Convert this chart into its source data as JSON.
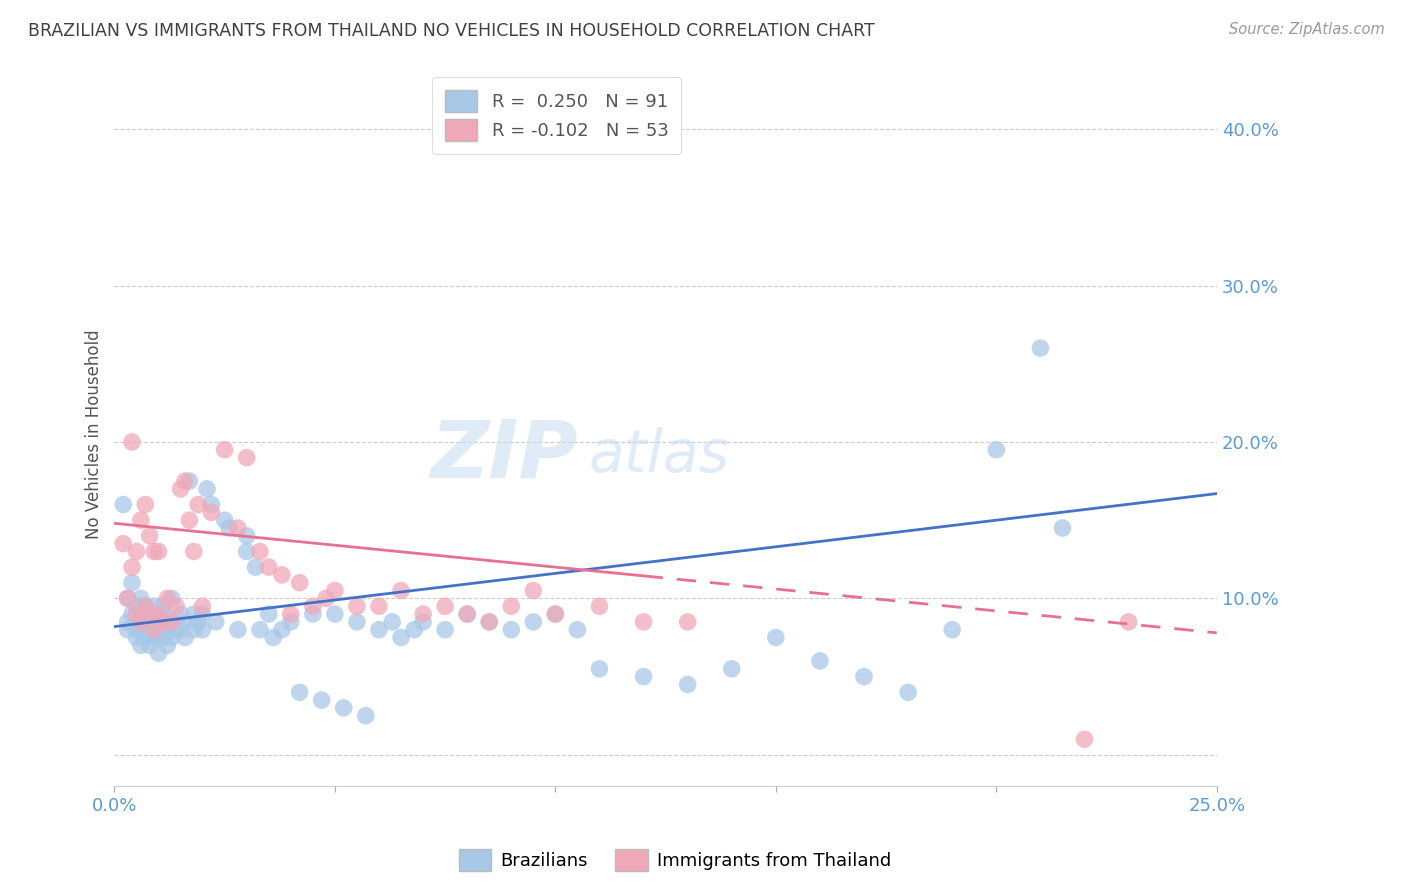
{
  "title": "BRAZILIAN VS IMMIGRANTS FROM THAILAND NO VEHICLES IN HOUSEHOLD CORRELATION CHART",
  "source": "Source: ZipAtlas.com",
  "ylabel": "No Vehicles in Household",
  "watermark_zip": "ZIP",
  "watermark_atlas": "atlas",
  "xlim": [
    0.0,
    0.25
  ],
  "ylim": [
    -0.02,
    0.43
  ],
  "yticks": [
    0.0,
    0.1,
    0.2,
    0.3,
    0.4
  ],
  "ytick_labels": [
    "",
    "10.0%",
    "20.0%",
    "30.0%",
    "40.0%"
  ],
  "xtick_show": [
    "0.0%",
    "25.0%"
  ],
  "blue_scatter_color": "#A8C8E8",
  "pink_scatter_color": "#F0A8B8",
  "blue_line_color": "#4472C4",
  "pink_line_color": "#E87090",
  "title_color": "#404040",
  "axis_tick_color": "#5B9BD5",
  "grid_color": "#CCCCCC",
  "background_color": "#FFFFFF",
  "legend_r1_label": "R =  0.250",
  "legend_r1_n": "N = 91",
  "legend_r2_label": "R = -0.102",
  "legend_r2_n": "N = 53",
  "blue_R": 0.25,
  "pink_R": -0.102,
  "blue_intercept": 0.082,
  "blue_slope": 0.34,
  "pink_intercept": 0.148,
  "pink_slope": -0.28,
  "brazilians_x": [
    0.002,
    0.003,
    0.003,
    0.004,
    0.004,
    0.005,
    0.005,
    0.005,
    0.006,
    0.006,
    0.006,
    0.007,
    0.007,
    0.007,
    0.008,
    0.008,
    0.008,
    0.009,
    0.009,
    0.009,
    0.01,
    0.01,
    0.01,
    0.011,
    0.011,
    0.012,
    0.012,
    0.013,
    0.013,
    0.014,
    0.015,
    0.015,
    0.016,
    0.016,
    0.017,
    0.018,
    0.018,
    0.019,
    0.02,
    0.02,
    0.021,
    0.022,
    0.023,
    0.025,
    0.026,
    0.028,
    0.03,
    0.03,
    0.032,
    0.033,
    0.035,
    0.036,
    0.038,
    0.04,
    0.042,
    0.045,
    0.047,
    0.05,
    0.052,
    0.055,
    0.057,
    0.06,
    0.063,
    0.065,
    0.068,
    0.07,
    0.075,
    0.08,
    0.085,
    0.09,
    0.095,
    0.1,
    0.105,
    0.11,
    0.12,
    0.13,
    0.14,
    0.15,
    0.16,
    0.17,
    0.18,
    0.19,
    0.2,
    0.21,
    0.215,
    0.003,
    0.005,
    0.007,
    0.009,
    0.011,
    0.013
  ],
  "brazilians_y": [
    0.16,
    0.08,
    0.1,
    0.09,
    0.11,
    0.075,
    0.085,
    0.095,
    0.07,
    0.08,
    0.1,
    0.075,
    0.085,
    0.095,
    0.07,
    0.08,
    0.09,
    0.075,
    0.085,
    0.095,
    0.065,
    0.075,
    0.085,
    0.075,
    0.09,
    0.07,
    0.08,
    0.075,
    0.085,
    0.08,
    0.08,
    0.09,
    0.075,
    0.085,
    0.175,
    0.08,
    0.09,
    0.085,
    0.08,
    0.09,
    0.17,
    0.16,
    0.085,
    0.15,
    0.145,
    0.08,
    0.14,
    0.13,
    0.12,
    0.08,
    0.09,
    0.075,
    0.08,
    0.085,
    0.04,
    0.09,
    0.035,
    0.09,
    0.03,
    0.085,
    0.025,
    0.08,
    0.085,
    0.075,
    0.08,
    0.085,
    0.08,
    0.09,
    0.085,
    0.08,
    0.085,
    0.09,
    0.08,
    0.055,
    0.05,
    0.045,
    0.055,
    0.075,
    0.06,
    0.05,
    0.04,
    0.08,
    0.195,
    0.26,
    0.145,
    0.085,
    0.08,
    0.09,
    0.085,
    0.095,
    0.1
  ],
  "thailand_x": [
    0.002,
    0.003,
    0.004,
    0.004,
    0.005,
    0.005,
    0.006,
    0.006,
    0.007,
    0.007,
    0.008,
    0.008,
    0.009,
    0.009,
    0.01,
    0.01,
    0.011,
    0.012,
    0.013,
    0.014,
    0.015,
    0.016,
    0.017,
    0.018,
    0.019,
    0.02,
    0.022,
    0.025,
    0.028,
    0.03,
    0.033,
    0.035,
    0.038,
    0.04,
    0.042,
    0.045,
    0.048,
    0.05,
    0.055,
    0.06,
    0.065,
    0.07,
    0.075,
    0.08,
    0.085,
    0.09,
    0.095,
    0.1,
    0.11,
    0.12,
    0.13,
    0.22,
    0.23
  ],
  "thailand_y": [
    0.135,
    0.1,
    0.12,
    0.2,
    0.09,
    0.13,
    0.085,
    0.15,
    0.095,
    0.16,
    0.09,
    0.14,
    0.08,
    0.13,
    0.09,
    0.13,
    0.085,
    0.1,
    0.085,
    0.095,
    0.17,
    0.175,
    0.15,
    0.13,
    0.16,
    0.095,
    0.155,
    0.195,
    0.145,
    0.19,
    0.13,
    0.12,
    0.115,
    0.09,
    0.11,
    0.095,
    0.1,
    0.105,
    0.095,
    0.095,
    0.105,
    0.09,
    0.095,
    0.09,
    0.085,
    0.095,
    0.105,
    0.09,
    0.095,
    0.085,
    0.085,
    0.01,
    0.085
  ]
}
